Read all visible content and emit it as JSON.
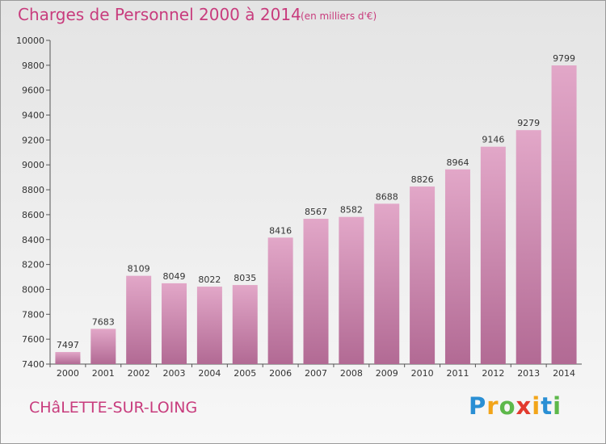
{
  "title": "Charges de Personnel 2000 à 2014",
  "subtitle": "(en milliers d'€)",
  "town": "CHâLETTE-SUR-LOING",
  "logo": {
    "letters": [
      "P",
      "r",
      "o",
      "x",
      "i",
      "t",
      "i"
    ],
    "colors": [
      "#2a8fd4",
      "#f2a51a",
      "#5db84a",
      "#e23a2e",
      "#f2a51a",
      "#2a8fd4",
      "#5db84a"
    ]
  },
  "colors": {
    "bar": "#d98fb6",
    "title": "#c83c7d"
  },
  "chart_data": {
    "type": "bar",
    "title": "Charges de Personnel 2000 à 2014",
    "ylabel": "(en milliers d'€)",
    "categories": [
      "2000",
      "2001",
      "2002",
      "2003",
      "2004",
      "2005",
      "2006",
      "2007",
      "2008",
      "2009",
      "2010",
      "2011",
      "2012",
      "2013",
      "2014"
    ],
    "values": [
      7497,
      7683,
      8109,
      8049,
      8022,
      8035,
      8416,
      8567,
      8582,
      8688,
      8826,
      8964,
      9146,
      9279,
      9799
    ],
    "ylim": [
      7400,
      10000
    ],
    "yticks": [
      "7400",
      "7600",
      "7800",
      "8000",
      "8200",
      "8400",
      "8600",
      "8800",
      "9000",
      "9200",
      "9400",
      "9600",
      "9800",
      "10000"
    ],
    "grid": false
  }
}
